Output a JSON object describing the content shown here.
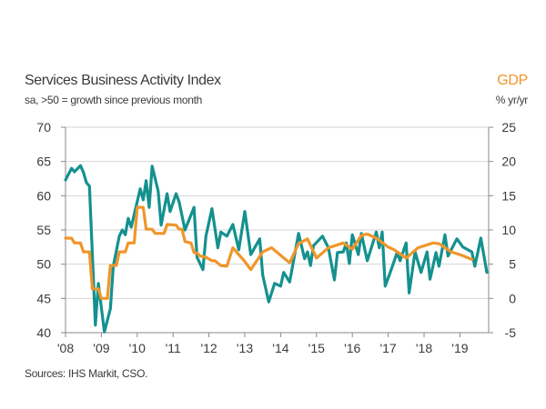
{
  "chart_data": {
    "type": "line",
    "title": "Services Business Activity Index",
    "subtitle": "sa, >50 = growth since previous month",
    "right_axis_title": "GDP",
    "right_axis_subtitle": "% yr/yr",
    "source": "Sources: IHS Markit, CSO.",
    "x_tick_labels": [
      "'08",
      "'09",
      "'10",
      "'11",
      "'12",
      "'13",
      "'14",
      "'15",
      "'16",
      "'17",
      "'18",
      "'19"
    ],
    "x_range": [
      "2008-01",
      "2019-11"
    ],
    "y_left": {
      "range": [
        40,
        70
      ],
      "ticks": [
        40,
        45,
        50,
        55,
        60,
        65,
        70
      ]
    },
    "y_right": {
      "range": [
        -5,
        25
      ],
      "ticks": [
        -5,
        0,
        5,
        10,
        15,
        20,
        25
      ]
    },
    "grid": true,
    "series": [
      {
        "axis": "left",
        "color": "#14918f",
        "points": [
          [
            "2008-01",
            62.3
          ],
          [
            "2008-03",
            64.0
          ],
          [
            "2008-04",
            63.5
          ],
          [
            "2008-06",
            64.4
          ],
          [
            "2008-07",
            63.4
          ],
          [
            "2008-08",
            61.9
          ],
          [
            "2008-09",
            61.4
          ],
          [
            "2008-11",
            41.1
          ],
          [
            "2008-12",
            47.2
          ],
          [
            "2009-02",
            40.1
          ],
          [
            "2009-04",
            43.5
          ],
          [
            "2009-05",
            49.7
          ],
          [
            "2009-07",
            54.1
          ],
          [
            "2009-08",
            55.0
          ],
          [
            "2009-09",
            54.3
          ],
          [
            "2009-10",
            56.7
          ],
          [
            "2009-11",
            55.4
          ],
          [
            "2010-02",
            61.0
          ],
          [
            "2010-03",
            59.4
          ],
          [
            "2010-04",
            62.2
          ],
          [
            "2010-05",
            58.3
          ],
          [
            "2010-06",
            64.3
          ],
          [
            "2010-08",
            60.7
          ],
          [
            "2010-09",
            55.7
          ],
          [
            "2010-11",
            60.3
          ],
          [
            "2010-12",
            57.7
          ],
          [
            "2011-02",
            60.3
          ],
          [
            "2011-03",
            59.1
          ],
          [
            "2011-05",
            55.0
          ],
          [
            "2011-08",
            58.3
          ],
          [
            "2011-09",
            51.0
          ],
          [
            "2011-11",
            49.2
          ],
          [
            "2011-12",
            54.1
          ],
          [
            "2012-02",
            58.1
          ],
          [
            "2012-04",
            52.4
          ],
          [
            "2012-05",
            54.7
          ],
          [
            "2012-07",
            54.1
          ],
          [
            "2012-09",
            55.8
          ],
          [
            "2012-11",
            52.1
          ],
          [
            "2013-01",
            57.7
          ],
          [
            "2013-03",
            51.4
          ],
          [
            "2013-06",
            53.7
          ],
          [
            "2013-07",
            48.4
          ],
          [
            "2013-09",
            44.5
          ],
          [
            "2013-11",
            47.2
          ],
          [
            "2014-01",
            46.8
          ],
          [
            "2014-02",
            48.8
          ],
          [
            "2014-04",
            47.4
          ],
          [
            "2014-07",
            54.5
          ],
          [
            "2014-09",
            50.8
          ],
          [
            "2014-10",
            51.8
          ],
          [
            "2014-11",
            49.8
          ],
          [
            "2014-12",
            52.7
          ],
          [
            "2015-03",
            54.1
          ],
          [
            "2015-05",
            52.4
          ],
          [
            "2015-07",
            47.7
          ],
          [
            "2015-08",
            51.7
          ],
          [
            "2015-10",
            51.8
          ],
          [
            "2015-11",
            53.1
          ],
          [
            "2015-12",
            50.1
          ],
          [
            "2016-01",
            54.3
          ],
          [
            "2016-03",
            51.4
          ],
          [
            "2016-04",
            54.5
          ],
          [
            "2016-06",
            50.5
          ],
          [
            "2016-09",
            54.7
          ],
          [
            "2016-10",
            52.4
          ],
          [
            "2016-11",
            54.7
          ],
          [
            "2016-12",
            46.8
          ],
          [
            "2017-02",
            49.2
          ],
          [
            "2017-04",
            51.7
          ],
          [
            "2017-05",
            50.5
          ],
          [
            "2017-07",
            53.1
          ],
          [
            "2017-08",
            45.8
          ],
          [
            "2017-10",
            51.8
          ],
          [
            "2017-12",
            48.8
          ],
          [
            "2018-02",
            51.8
          ],
          [
            "2018-03",
            47.8
          ],
          [
            "2018-05",
            51.7
          ],
          [
            "2018-06",
            49.7
          ],
          [
            "2018-08",
            54.3
          ],
          [
            "2018-09",
            51.2
          ],
          [
            "2018-12",
            53.7
          ],
          [
            "2019-02",
            52.5
          ],
          [
            "2019-05",
            51.8
          ],
          [
            "2019-06",
            49.7
          ],
          [
            "2019-08",
            53.8
          ],
          [
            "2019-10",
            48.8
          ]
        ]
      },
      {
        "axis": "right",
        "color": "#f0962a",
        "points": [
          [
            "2008-01",
            8.8
          ],
          [
            "2008-03",
            8.8
          ],
          [
            "2008-04",
            8.1
          ],
          [
            "2008-06",
            8.1
          ],
          [
            "2008-07",
            6.8
          ],
          [
            "2008-09",
            6.8
          ],
          [
            "2008-10",
            1.4
          ],
          [
            "2008-12",
            1.4
          ],
          [
            "2009-01",
            0.0
          ],
          [
            "2009-03",
            0.0
          ],
          [
            "2009-04",
            4.8
          ],
          [
            "2009-06",
            4.8
          ],
          [
            "2009-07",
            6.8
          ],
          [
            "2009-09",
            6.8
          ],
          [
            "2009-10",
            8.1
          ],
          [
            "2009-12",
            8.1
          ],
          [
            "2010-01",
            13.3
          ],
          [
            "2010-03",
            13.3
          ],
          [
            "2010-04",
            10.1
          ],
          [
            "2010-06",
            10.1
          ],
          [
            "2010-07",
            9.5
          ],
          [
            "2010-10",
            9.5
          ],
          [
            "2010-11",
            10.8
          ],
          [
            "2011-02",
            10.7
          ],
          [
            "2011-03",
            10.1
          ],
          [
            "2011-04",
            10.1
          ],
          [
            "2011-05",
            8.3
          ],
          [
            "2011-07",
            8.1
          ],
          [
            "2011-08",
            6.7
          ],
          [
            "2011-09",
            6.6
          ],
          [
            "2011-10",
            6.2
          ],
          [
            "2011-12",
            6.0
          ],
          [
            "2012-02",
            5.5
          ],
          [
            "2012-03",
            5.5
          ],
          [
            "2012-05",
            4.8
          ],
          [
            "2012-07",
            4.7
          ],
          [
            "2012-09",
            7.4
          ],
          [
            "2013-01",
            5.4
          ],
          [
            "2013-03",
            4.2
          ],
          [
            "2013-07",
            6.8
          ],
          [
            "2013-10",
            7.4
          ],
          [
            "2014-04",
            5.2
          ],
          [
            "2014-07",
            8.0
          ],
          [
            "2014-10",
            8.7
          ],
          [
            "2015-01",
            5.9
          ],
          [
            "2015-05",
            7.4
          ],
          [
            "2015-10",
            8.1
          ],
          [
            "2016-01",
            7.2
          ],
          [
            "2016-04",
            9.2
          ],
          [
            "2016-06",
            9.4
          ],
          [
            "2016-09",
            8.8
          ],
          [
            "2017-01",
            7.5
          ],
          [
            "2017-03",
            7.1
          ],
          [
            "2017-07",
            5.9
          ],
          [
            "2017-11",
            7.4
          ],
          [
            "2018-04",
            8.1
          ],
          [
            "2018-06",
            8.0
          ],
          [
            "2018-10",
            6.8
          ],
          [
            "2019-01",
            6.4
          ],
          [
            "2019-05",
            5.7
          ]
        ]
      }
    ]
  }
}
